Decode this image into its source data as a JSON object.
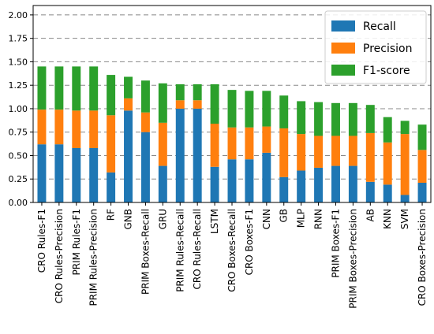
{
  "chart_data": {
    "type": "bar",
    "stacked": true,
    "categories": [
      "CRO Rules-F1",
      "CRO Rules-Precision",
      "PRIM Rules-F1",
      "PRIM Rules-Precision",
      "RF",
      "GNB",
      "PRIM Boxes-Recall",
      "GRU",
      "PRIM Rules-Recall",
      "CRO Rules-Recall",
      "LSTM",
      "CRO Boxes-Recall",
      "CRO Boxes-F1",
      "CNN",
      "GB",
      "MLP",
      "RNN",
      "PRIM Boxes-F1",
      "PRIM Boxes-Precision",
      "AB",
      "KNN",
      "SVM",
      "CRO Boxes-Precision"
    ],
    "series": [
      {
        "name": "Recall",
        "color": "#1f77b4",
        "values": [
          0.62,
          0.62,
          0.58,
          0.58,
          0.32,
          0.98,
          0.75,
          0.39,
          1.0,
          1.0,
          0.38,
          0.46,
          0.46,
          0.53,
          0.27,
          0.34,
          0.37,
          0.39,
          0.39,
          0.22,
          0.19,
          0.08,
          0.21
        ]
      },
      {
        "name": "Precision",
        "color": "#ff7f0e",
        "values": [
          0.37,
          0.37,
          0.4,
          0.4,
          0.61,
          0.13,
          0.21,
          0.46,
          0.09,
          0.09,
          0.46,
          0.34,
          0.34,
          0.28,
          0.52,
          0.39,
          0.34,
          0.32,
          0.32,
          0.52,
          0.45,
          0.65,
          0.35
        ]
      },
      {
        "name": "F1-score",
        "color": "#2ca02c",
        "values": [
          0.46,
          0.46,
          0.47,
          0.47,
          0.43,
          0.23,
          0.34,
          0.42,
          0.17,
          0.17,
          0.42,
          0.4,
          0.39,
          0.38,
          0.35,
          0.35,
          0.36,
          0.35,
          0.35,
          0.3,
          0.27,
          0.14,
          0.27
        ]
      }
    ],
    "ylim": [
      0,
      2.1
    ],
    "yticks": [
      "0.00",
      "0.25",
      "0.50",
      "0.75",
      "1.00",
      "1.25",
      "1.50",
      "1.75",
      "2.00"
    ],
    "ytick_values": [
      0,
      0.25,
      0.5,
      0.75,
      1.0,
      1.25,
      1.5,
      1.75,
      2.0
    ],
    "grid": "horizontal-dashed",
    "legend_position": "top-right",
    "title": "",
    "xlabel": "",
    "ylabel": ""
  }
}
